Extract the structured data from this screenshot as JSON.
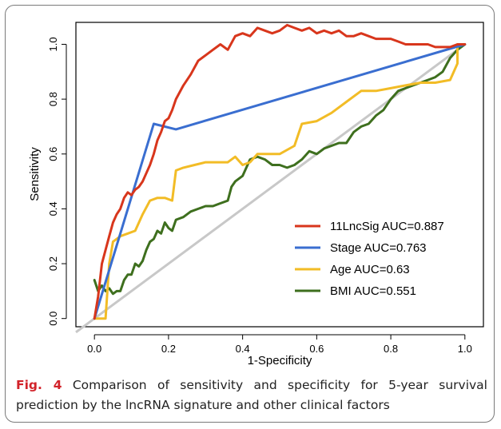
{
  "caption": {
    "fig_label": "Fig. 4",
    "text": " Comparison of sensitivity and specificity for 5-year survival prediction by the lncRNA signature and other clinical factors"
  },
  "chart_data": {
    "type": "line",
    "xlabel": "1-Specificity",
    "ylabel": "Sensitivity",
    "xlim": [
      -0.05,
      1.05
    ],
    "ylim": [
      -0.03,
      1.08
    ],
    "x_ticks": [
      "0.0",
      "0.2",
      "0.4",
      "0.6",
      "0.8",
      "1.0"
    ],
    "y_ticks": [
      "0.0",
      "0.2",
      "0.4",
      "0.6",
      "0.8",
      "1.0"
    ],
    "legend_position": "bottom-right",
    "reference_line": {
      "points": [
        [
          -0.05,
          -0.05
        ],
        [
          1.0,
          1.0
        ]
      ],
      "color": "#c8c8c8"
    },
    "series": [
      {
        "name": "11LncSig AUC=0.887",
        "color": "#d8361c",
        "points": [
          [
            0.0,
            0.0
          ],
          [
            0.01,
            0.08
          ],
          [
            0.02,
            0.2
          ],
          [
            0.03,
            0.25
          ],
          [
            0.04,
            0.3
          ],
          [
            0.05,
            0.35
          ],
          [
            0.06,
            0.38
          ],
          [
            0.07,
            0.4
          ],
          [
            0.08,
            0.44
          ],
          [
            0.09,
            0.46
          ],
          [
            0.1,
            0.45
          ],
          [
            0.11,
            0.47
          ],
          [
            0.12,
            0.48
          ],
          [
            0.13,
            0.5
          ],
          [
            0.14,
            0.53
          ],
          [
            0.15,
            0.56
          ],
          [
            0.16,
            0.6
          ],
          [
            0.17,
            0.65
          ],
          [
            0.18,
            0.68
          ],
          [
            0.19,
            0.72
          ],
          [
            0.2,
            0.73
          ],
          [
            0.21,
            0.76
          ],
          [
            0.22,
            0.8
          ],
          [
            0.24,
            0.85
          ],
          [
            0.26,
            0.89
          ],
          [
            0.28,
            0.94
          ],
          [
            0.3,
            0.96
          ],
          [
            0.32,
            0.98
          ],
          [
            0.34,
            1.0
          ],
          [
            0.36,
            0.98
          ],
          [
            0.38,
            1.03
          ],
          [
            0.4,
            1.04
          ],
          [
            0.42,
            1.03
          ],
          [
            0.44,
            1.06
          ],
          [
            0.46,
            1.05
          ],
          [
            0.48,
            1.04
          ],
          [
            0.5,
            1.05
          ],
          [
            0.52,
            1.07
          ],
          [
            0.54,
            1.06
          ],
          [
            0.56,
            1.05
          ],
          [
            0.58,
            1.06
          ],
          [
            0.6,
            1.04
          ],
          [
            0.62,
            1.05
          ],
          [
            0.64,
            1.04
          ],
          [
            0.66,
            1.05
          ],
          [
            0.68,
            1.03
          ],
          [
            0.7,
            1.03
          ],
          [
            0.72,
            1.04
          ],
          [
            0.74,
            1.03
          ],
          [
            0.76,
            1.02
          ],
          [
            0.78,
            1.02
          ],
          [
            0.8,
            1.02
          ],
          [
            0.82,
            1.01
          ],
          [
            0.84,
            1.0
          ],
          [
            0.86,
            1.0
          ],
          [
            0.88,
            1.0
          ],
          [
            0.9,
            1.0
          ],
          [
            0.92,
            0.99
          ],
          [
            0.94,
            0.99
          ],
          [
            0.96,
            0.99
          ],
          [
            0.98,
            1.0
          ],
          [
            1.0,
            1.0
          ]
        ]
      },
      {
        "name": "Stage AUC=0.763",
        "color": "#3a6ed0",
        "points": [
          [
            0.0,
            0.0
          ],
          [
            0.16,
            0.71
          ],
          [
            0.22,
            0.69
          ],
          [
            1.0,
            1.0
          ]
        ]
      },
      {
        "name": "Age AUC=0.63",
        "color": "#f2bc26",
        "points": [
          [
            0.0,
            0.0
          ],
          [
            0.03,
            0.0
          ],
          [
            0.04,
            0.2
          ],
          [
            0.05,
            0.28
          ],
          [
            0.07,
            0.3
          ],
          [
            0.09,
            0.31
          ],
          [
            0.11,
            0.32
          ],
          [
            0.13,
            0.38
          ],
          [
            0.15,
            0.43
          ],
          [
            0.17,
            0.44
          ],
          [
            0.19,
            0.44
          ],
          [
            0.21,
            0.43
          ],
          [
            0.22,
            0.54
          ],
          [
            0.24,
            0.55
          ],
          [
            0.27,
            0.56
          ],
          [
            0.3,
            0.57
          ],
          [
            0.33,
            0.57
          ],
          [
            0.36,
            0.57
          ],
          [
            0.38,
            0.59
          ],
          [
            0.4,
            0.56
          ],
          [
            0.42,
            0.57
          ],
          [
            0.44,
            0.6
          ],
          [
            0.47,
            0.6
          ],
          [
            0.5,
            0.6
          ],
          [
            0.54,
            0.63
          ],
          [
            0.56,
            0.71
          ],
          [
            0.6,
            0.72
          ],
          [
            0.64,
            0.75
          ],
          [
            0.68,
            0.79
          ],
          [
            0.72,
            0.83
          ],
          [
            0.76,
            0.83
          ],
          [
            0.8,
            0.84
          ],
          [
            0.84,
            0.85
          ],
          [
            0.88,
            0.86
          ],
          [
            0.92,
            0.86
          ],
          [
            0.96,
            0.87
          ],
          [
            0.98,
            0.93
          ],
          [
            0.98,
            1.0
          ]
        ]
      },
      {
        "name": "BMI AUC=0.551",
        "color": "#3e6f1e",
        "points": [
          [
            0.0,
            0.14
          ],
          [
            0.01,
            0.1
          ],
          [
            0.02,
            0.12
          ],
          [
            0.03,
            0.1
          ],
          [
            0.04,
            0.11
          ],
          [
            0.05,
            0.09
          ],
          [
            0.06,
            0.1
          ],
          [
            0.07,
            0.1
          ],
          [
            0.08,
            0.14
          ],
          [
            0.09,
            0.16
          ],
          [
            0.1,
            0.16
          ],
          [
            0.11,
            0.2
          ],
          [
            0.12,
            0.19
          ],
          [
            0.13,
            0.21
          ],
          [
            0.14,
            0.25
          ],
          [
            0.15,
            0.28
          ],
          [
            0.16,
            0.29
          ],
          [
            0.17,
            0.32
          ],
          [
            0.18,
            0.31
          ],
          [
            0.19,
            0.35
          ],
          [
            0.2,
            0.33
          ],
          [
            0.21,
            0.32
          ],
          [
            0.22,
            0.36
          ],
          [
            0.24,
            0.37
          ],
          [
            0.26,
            0.39
          ],
          [
            0.28,
            0.4
          ],
          [
            0.3,
            0.41
          ],
          [
            0.32,
            0.41
          ],
          [
            0.34,
            0.42
          ],
          [
            0.36,
            0.43
          ],
          [
            0.37,
            0.48
          ],
          [
            0.38,
            0.5
          ],
          [
            0.4,
            0.52
          ],
          [
            0.42,
            0.58
          ],
          [
            0.44,
            0.59
          ],
          [
            0.46,
            0.58
          ],
          [
            0.48,
            0.56
          ],
          [
            0.5,
            0.56
          ],
          [
            0.52,
            0.55
          ],
          [
            0.54,
            0.56
          ],
          [
            0.56,
            0.58
          ],
          [
            0.58,
            0.61
          ],
          [
            0.6,
            0.6
          ],
          [
            0.62,
            0.62
          ],
          [
            0.64,
            0.63
          ],
          [
            0.66,
            0.64
          ],
          [
            0.68,
            0.64
          ],
          [
            0.7,
            0.68
          ],
          [
            0.72,
            0.7
          ],
          [
            0.74,
            0.71
          ],
          [
            0.76,
            0.74
          ],
          [
            0.78,
            0.76
          ],
          [
            0.8,
            0.8
          ],
          [
            0.82,
            0.83
          ],
          [
            0.84,
            0.84
          ],
          [
            0.86,
            0.85
          ],
          [
            0.88,
            0.86
          ],
          [
            0.9,
            0.87
          ],
          [
            0.92,
            0.88
          ],
          [
            0.94,
            0.9
          ],
          [
            0.96,
            0.95
          ],
          [
            0.98,
            0.98
          ],
          [
            1.0,
            1.0
          ]
        ]
      }
    ]
  }
}
